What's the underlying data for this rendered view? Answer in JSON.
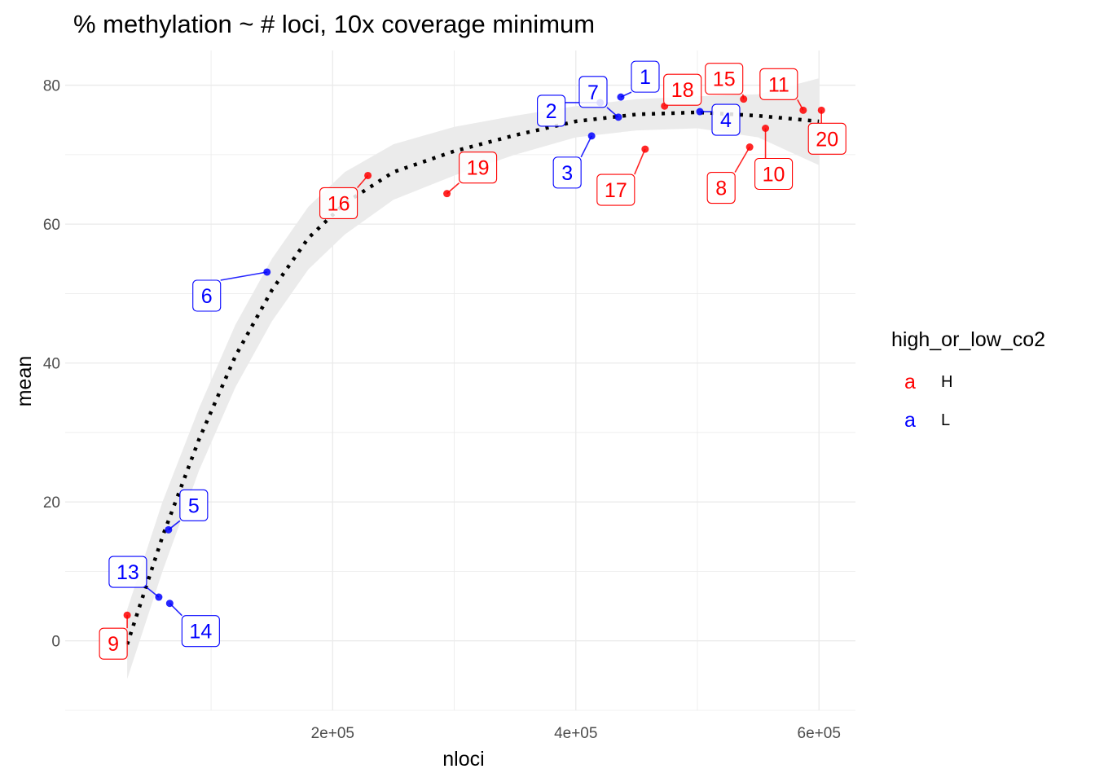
{
  "chart_data": {
    "type": "scatter",
    "title": "% methylation ~ # loci, 10x coverage minimum",
    "xlabel": "nloci",
    "ylabel": "mean",
    "xlim": [
      -20000,
      630000
    ],
    "ylim": [
      -10,
      85
    ],
    "x_ticks": [
      200000,
      400000,
      600000
    ],
    "x_tick_labels": [
      "2e+05",
      "4e+05",
      "6e+05"
    ],
    "y_ticks": [
      0,
      20,
      40,
      60,
      80
    ],
    "y_tick_labels": [
      "0",
      "20",
      "40",
      "60",
      "80"
    ],
    "grid": true,
    "legend": {
      "title": "high_or_low_co2",
      "position": "right",
      "key_glyph": "a",
      "entries": [
        {
          "label": "H",
          "color": "#ff0000"
        },
        {
          "label": "L",
          "color": "#0000ff"
        }
      ]
    },
    "colors": {
      "H": "#ff0000",
      "L": "#0000ff",
      "smooth": "#000000",
      "ribbon": "#ebebeb"
    },
    "points": [
      {
        "label": "1",
        "group": "L",
        "x": 437000,
        "y": 78.3
      },
      {
        "label": "2",
        "group": "L",
        "x": 420000,
        "y": 77.5
      },
      {
        "label": "3",
        "group": "L",
        "x": 413000,
        "y": 72.7
      },
      {
        "label": "4",
        "group": "L",
        "x": 502000,
        "y": 76.2
      },
      {
        "label": "5",
        "group": "L",
        "x": 65000,
        "y": 16.0
      },
      {
        "label": "6",
        "group": "L",
        "x": 146000,
        "y": 53.1
      },
      {
        "label": "7",
        "group": "L",
        "x": 435000,
        "y": 75.4
      },
      {
        "label": "8",
        "group": "H",
        "x": 543000,
        "y": 71.1
      },
      {
        "label": "9",
        "group": "H",
        "x": 31000,
        "y": 3.7
      },
      {
        "label": "10",
        "group": "H",
        "x": 556000,
        "y": 73.8
      },
      {
        "label": "11",
        "group": "H",
        "x": 587000,
        "y": 76.4
      },
      {
        "label": "13",
        "group": "L",
        "x": 57000,
        "y": 6.3
      },
      {
        "label": "14",
        "group": "L",
        "x": 66000,
        "y": 5.4
      },
      {
        "label": "15",
        "group": "H",
        "x": 538000,
        "y": 78.0
      },
      {
        "label": "16",
        "group": "H",
        "x": 229000,
        "y": 67.0
      },
      {
        "label": "17",
        "group": "H",
        "x": 457000,
        "y": 70.8
      },
      {
        "label": "18",
        "group": "H",
        "x": 473000,
        "y": 77.0
      },
      {
        "label": "19",
        "group": "H",
        "x": 294000,
        "y": 64.4
      },
      {
        "label": "20",
        "group": "H",
        "x": 602000,
        "y": 76.4
      }
    ],
    "smooth": {
      "style": "dotted",
      "x": [
        31000,
        60000,
        90000,
        120000,
        150000,
        180000,
        210000,
        250000,
        300000,
        350000,
        400000,
        450000,
        500000,
        550000,
        600000
      ],
      "y": [
        -0.5,
        15,
        29,
        41,
        50.5,
        58,
        63,
        67.5,
        70.5,
        72.8,
        74.8,
        75.8,
        76.1,
        75.6,
        74.8
      ],
      "ymin": [
        -5.5,
        10,
        24.5,
        36.5,
        46,
        53.5,
        58.5,
        63.5,
        67,
        70,
        72.5,
        73.5,
        73.8,
        72.5,
        68.5
      ],
      "ymax": [
        4.5,
        20,
        33.5,
        45.5,
        55,
        62.5,
        67.5,
        71.5,
        74,
        75.6,
        77,
        78,
        78.4,
        78.7,
        81
      ]
    }
  }
}
